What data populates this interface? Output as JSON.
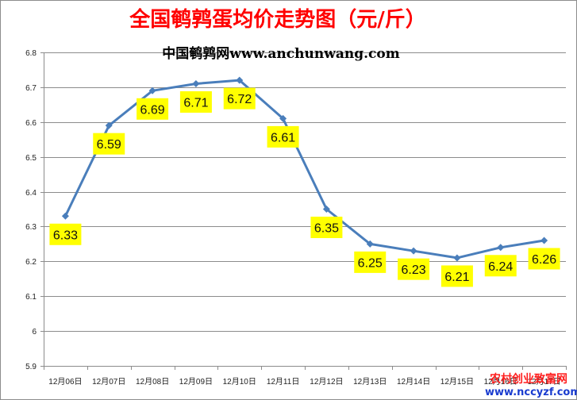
{
  "chart_data": {
    "type": "line",
    "title": "全国鹌鹑蛋均价走势图（元/斤）",
    "subtitle": "中国鹌鹑网www.anchunwang.com",
    "categories": [
      "12月06日",
      "12月07日",
      "12月08日",
      "12月09日",
      "12月10日",
      "12月11日",
      "12月12日",
      "12月13日",
      "12月14日",
      "12月15日",
      "12月16日",
      "12月17日"
    ],
    "series": [
      {
        "values": [
          6.33,
          6.59,
          6.69,
          6.71,
          6.72,
          6.61,
          6.35,
          6.25,
          6.23,
          6.21,
          6.24,
          6.26
        ]
      }
    ],
    "data_labels": [
      "6.33",
      "6.59",
      "6.69",
      "6.71",
      "6.72",
      "6.61",
      "6.35",
      "6.25",
      "6.23",
      "6.21",
      "6.24",
      "6.26"
    ],
    "ylim": [
      5.9,
      6.8
    ],
    "yticks": [
      5.9,
      6.0,
      6.1,
      6.2,
      6.3,
      6.4,
      6.5,
      6.6,
      6.7,
      6.8
    ],
    "ytick_labels": [
      "5.9",
      "6",
      "6.1",
      "6.2",
      "6.3",
      "6.4",
      "6.5",
      "6.6",
      "6.7",
      "6.8"
    ],
    "grid": true,
    "legend": "none",
    "colors": {
      "line": "#4a7ebb",
      "title": "#ff0000",
      "label_bg": "#ffff00",
      "grid": "#8c8c8c"
    }
  },
  "watermark": {
    "line1": "农村创业致富网",
    "line2": "www.nccyzf.com",
    "color1": "#ff2020",
    "color2": "#1a3ccf"
  }
}
